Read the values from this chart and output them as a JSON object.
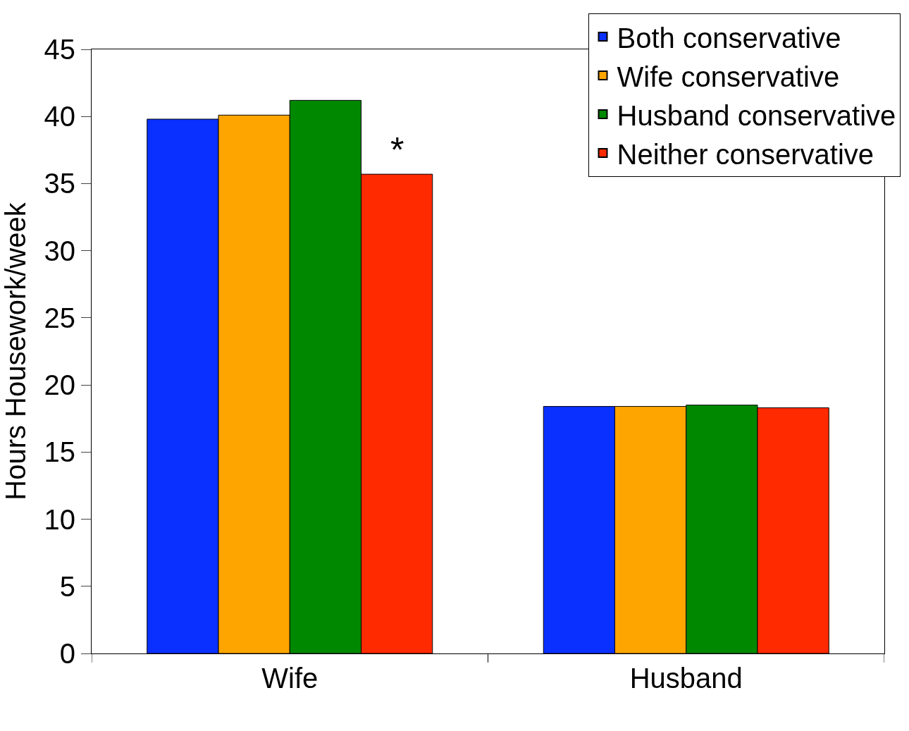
{
  "chart_data": {
    "type": "bar",
    "ylabel": "Hours Housework/week",
    "categories": [
      "Wife",
      "Husband"
    ],
    "series": [
      {
        "name": "Both conservative",
        "color": "#0a30ff",
        "values": [
          39.8,
          18.4
        ]
      },
      {
        "name": "Wife conservative",
        "color": "#ffa500",
        "values": [
          40.1,
          18.4
        ]
      },
      {
        "name": "Husband conservative",
        "color": "#008800",
        "values": [
          41.2,
          18.5
        ]
      },
      {
        "name": "Neither conservative",
        "color": "#ff2a00",
        "values": [
          35.7,
          18.3
        ]
      }
    ],
    "ylim": [
      0,
      45
    ],
    "yticks": [
      0,
      5,
      10,
      15,
      20,
      25,
      30,
      35,
      40,
      45
    ],
    "legend": "top right",
    "annotations": [
      {
        "text": "*",
        "x": "Wife",
        "y": 37.5
      }
    ]
  }
}
